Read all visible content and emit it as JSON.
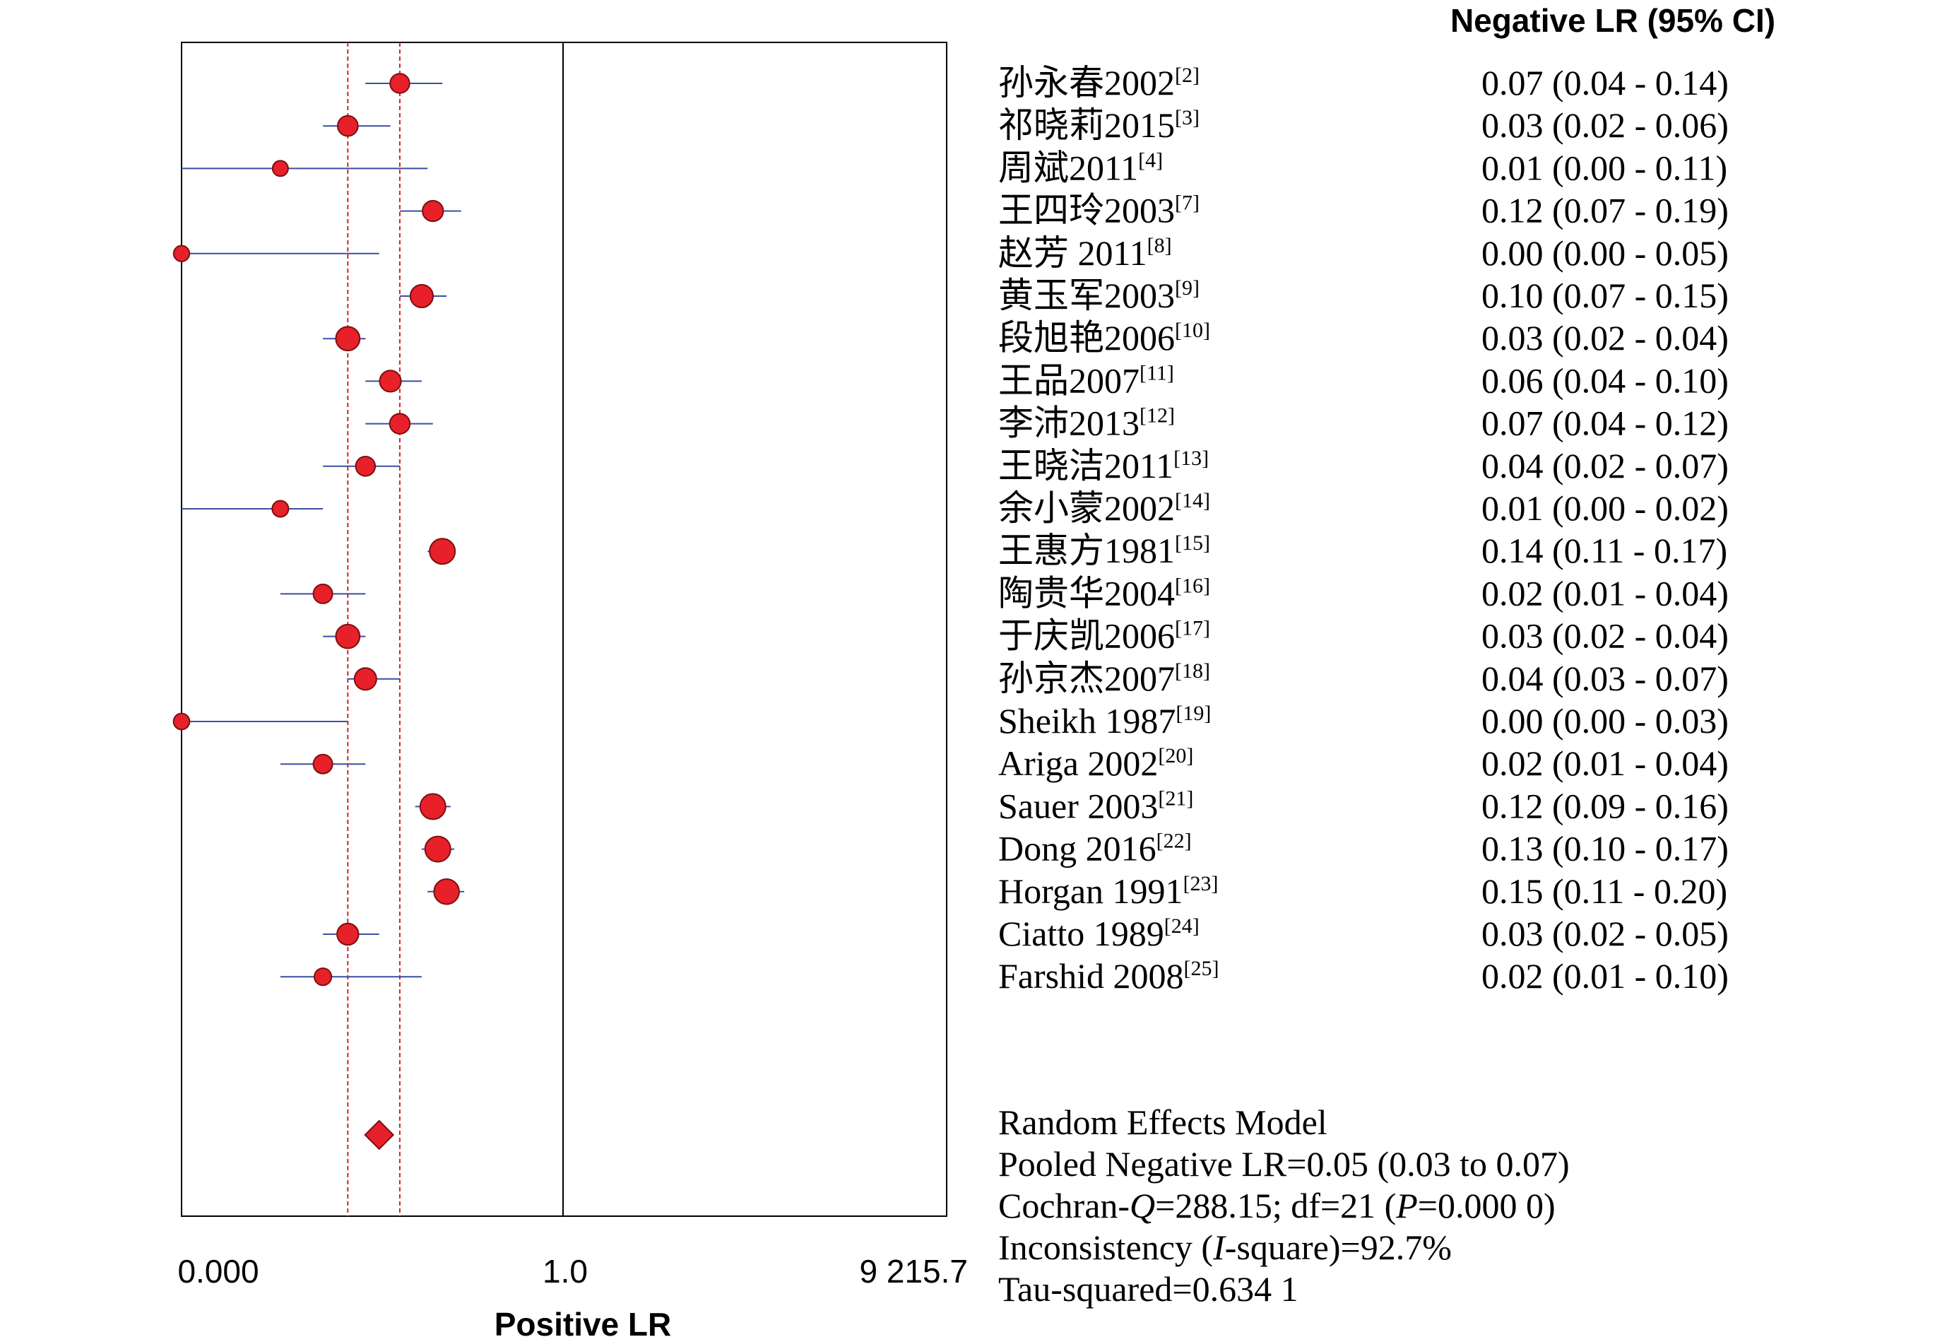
{
  "chart_data": {
    "type": "forest",
    "right_header": "Negative LR (95% CI)",
    "xlabel": "Positive LR",
    "x_ticks": [
      "0.000",
      "1.0",
      "9 215.7"
    ],
    "pooled": {
      "estimate": 0.05,
      "lower": 0.03,
      "upper": 0.07
    },
    "studies": [
      {
        "label": "孙永春2002",
        "ref": "[2]",
        "value": 0.07,
        "lower": 0.04,
        "upper": 0.14,
        "text": "0.07 (0.04 - 0.14)"
      },
      {
        "label": "祁晓莉2015",
        "ref": "[3]",
        "value": 0.03,
        "lower": 0.02,
        "upper": 0.06,
        "text": "0.03 (0.02 - 0.06)"
      },
      {
        "label": "周斌2011",
        "ref": "[4]",
        "value": 0.01,
        "lower": 0.0,
        "upper": 0.11,
        "text": "0.01 (0.00 - 0.11)"
      },
      {
        "label": "王四玲2003",
        "ref": "[7]",
        "value": 0.12,
        "lower": 0.07,
        "upper": 0.19,
        "text": "0.12 (0.07 - 0.19)"
      },
      {
        "label": "赵芳 2011",
        "ref": "[8]",
        "value": 0.0,
        "lower": 0.0,
        "upper": 0.05,
        "text": "0.00 (0.00 - 0.05)"
      },
      {
        "label": "黄玉军2003",
        "ref": "[9]",
        "value": 0.1,
        "lower": 0.07,
        "upper": 0.15,
        "text": "0.10 (0.07 - 0.15)"
      },
      {
        "label": "段旭艳2006",
        "ref": "[10]",
        "value": 0.03,
        "lower": 0.02,
        "upper": 0.04,
        "text": "0.03 (0.02 - 0.04)"
      },
      {
        "label": "王品2007",
        "ref": "[11]",
        "value": 0.06,
        "lower": 0.04,
        "upper": 0.1,
        "text": "0.06 (0.04 - 0.10)"
      },
      {
        "label": "李沛2013",
        "ref": "[12]",
        "value": 0.07,
        "lower": 0.04,
        "upper": 0.12,
        "text": "0.07 (0.04 - 0.12)"
      },
      {
        "label": "王晓洁2011",
        "ref": "[13]",
        "value": 0.04,
        "lower": 0.02,
        "upper": 0.07,
        "text": "0.04 (0.02 - 0.07)"
      },
      {
        "label": "余小蒙2002",
        "ref": "[14]",
        "value": 0.01,
        "lower": 0.0,
        "upper": 0.02,
        "text": "0.01 (0.00 - 0.02)"
      },
      {
        "label": "王惠方1981",
        "ref": "[15]",
        "value": 0.14,
        "lower": 0.11,
        "upper": 0.17,
        "text": "0.14 (0.11 - 0.17)"
      },
      {
        "label": "陶贵华2004",
        "ref": "[16]",
        "value": 0.02,
        "lower": 0.01,
        "upper": 0.04,
        "text": "0.02 (0.01 - 0.04)"
      },
      {
        "label": "于庆凯2006",
        "ref": "[17]",
        "value": 0.03,
        "lower": 0.02,
        "upper": 0.04,
        "text": "0.03 (0.02 - 0.04)"
      },
      {
        "label": "孙京杰2007",
        "ref": "[18]",
        "value": 0.04,
        "lower": 0.03,
        "upper": 0.07,
        "text": "0.04 (0.03 - 0.07)"
      },
      {
        "label": "Sheikh 1987",
        "ref": "[19]",
        "value": 0.0,
        "lower": 0.0,
        "upper": 0.03,
        "text": "0.00 (0.00 - 0.03)"
      },
      {
        "label": "Ariga 2002",
        "ref": "[20]",
        "value": 0.02,
        "lower": 0.01,
        "upper": 0.04,
        "text": "0.02 (0.01 - 0.04)"
      },
      {
        "label": "Sauer 2003",
        "ref": "[21]",
        "value": 0.12,
        "lower": 0.09,
        "upper": 0.16,
        "text": "0.12 (0.09 - 0.16)"
      },
      {
        "label": "Dong 2016",
        "ref": "[22]",
        "value": 0.13,
        "lower": 0.1,
        "upper": 0.17,
        "text": "0.13 (0.10 - 0.17)"
      },
      {
        "label": "Horgan 1991",
        "ref": "[23]",
        "value": 0.15,
        "lower": 0.11,
        "upper": 0.2,
        "text": "0.15 (0.11 - 0.20)"
      },
      {
        "label": "Ciatto 1989",
        "ref": "[24]",
        "value": 0.03,
        "lower": 0.02,
        "upper": 0.05,
        "text": "0.03 (0.02 - 0.05)"
      },
      {
        "label": "Farshid 2008",
        "ref": "[25]",
        "value": 0.02,
        "lower": 0.01,
        "upper": 0.1,
        "text": "0.02 (0.01 - 0.10)"
      }
    ],
    "summary": [
      {
        "text": "Random Effects Model"
      },
      {
        "text": "Pooled Negative LR=0.05 (0.03 to 0.07)"
      },
      {
        "text": "Cochran-Q=288.15; df=21 (P=0.000 0)"
      },
      {
        "text": "Inconsistency (I-square)=92.7%"
      },
      {
        "text": "Tau-squared=0.634 1"
      }
    ],
    "colors": {
      "marker_fill": "#e8202a",
      "marker_stroke": "#7a1010",
      "ci_line": "#3b4ea0",
      "pooled_line": "#d8202a",
      "axis": "#000000"
    }
  }
}
